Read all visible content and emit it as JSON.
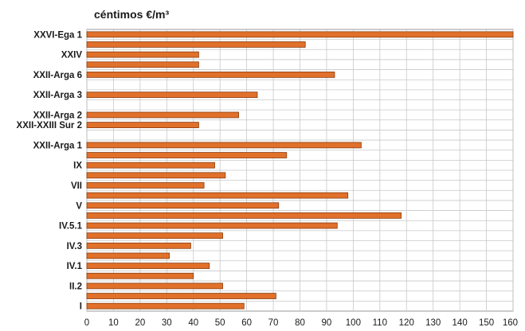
{
  "chart_data": {
    "type": "bar",
    "orientation": "horizontal",
    "unit_label": "céntimos €/m³",
    "xlim": [
      0,
      160
    ],
    "x_ticks": [
      0,
      10,
      20,
      30,
      40,
      50,
      60,
      70,
      80,
      90,
      100,
      110,
      120,
      130,
      140,
      150,
      160
    ],
    "grid": true,
    "bar_color": "#e0702a",
    "bar_edge_color": "#8a3d10",
    "rows": [
      {
        "label": "XXVI-Ega 1",
        "value": 160
      },
      {
        "label": "",
        "value": 82
      },
      {
        "label": "XXIV",
        "value": 42
      },
      {
        "label": "",
        "value": 42
      },
      {
        "label": "XXII-Arga 6",
        "value": 93
      },
      {
        "label": "",
        "value": null
      },
      {
        "label": "XXII-Arga 3",
        "value": 64
      },
      {
        "label": "",
        "value": null
      },
      {
        "label": "XXII-Arga 2",
        "value": 57
      },
      {
        "label": "XXII-XXIII Sur 2",
        "value": 42
      },
      {
        "label": "",
        "value": null
      },
      {
        "label": "XXII-Arga 1",
        "value": 103
      },
      {
        "label": "",
        "value": 75
      },
      {
        "label": "IX",
        "value": 48
      },
      {
        "label": "",
        "value": 52
      },
      {
        "label": "VII",
        "value": 44
      },
      {
        "label": "",
        "value": 98
      },
      {
        "label": "V",
        "value": 72
      },
      {
        "label": "",
        "value": 118
      },
      {
        "label": "IV.5.1",
        "value": 94
      },
      {
        "label": "",
        "value": 51
      },
      {
        "label": "IV.3",
        "value": 39
      },
      {
        "label": "",
        "value": 31
      },
      {
        "label": "IV.1",
        "value": 46
      },
      {
        "label": "",
        "value": 40
      },
      {
        "label": "II.2",
        "value": 51
      },
      {
        "label": "",
        "value": 71
      },
      {
        "label": "I",
        "value": 59
      }
    ]
  }
}
